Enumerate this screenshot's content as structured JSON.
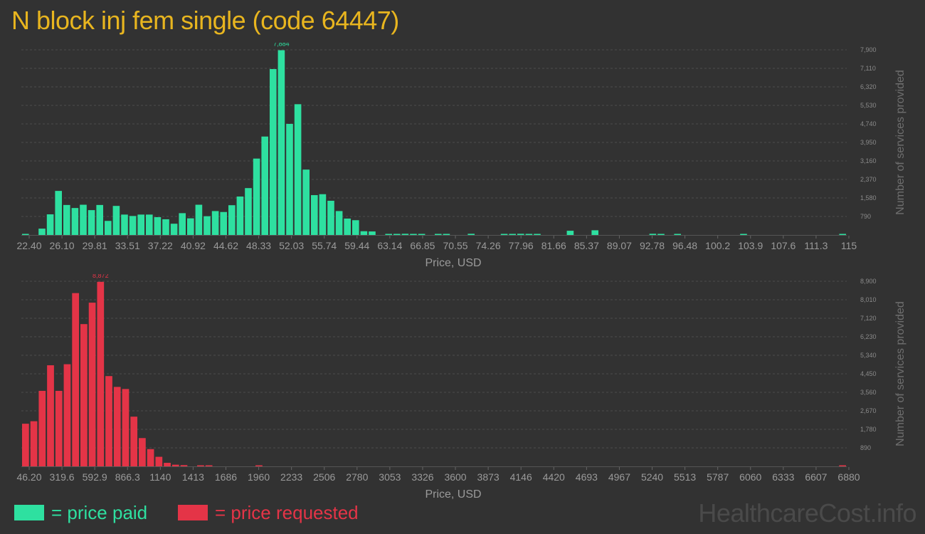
{
  "title": "N block inj fem single (code 64447)",
  "legend": {
    "paid_label": "= price paid",
    "requested_label": "= price requested",
    "paid_color": "#2ee0a0",
    "requested_color": "#e43447"
  },
  "brand": "HealthcareCost.info",
  "chart_data": [
    {
      "type": "bar",
      "name": "price paid",
      "color": "#2ee0a0",
      "xlabel": "Price, USD",
      "ylabel": "Number of services provided",
      "x_tick_labels": [
        "22.40",
        "26.10",
        "29.81",
        "33.51",
        "37.22",
        "40.92",
        "44.62",
        "48.33",
        "52.03",
        "55.74",
        "59.44",
        "63.14",
        "66.85",
        "70.55",
        "74.26",
        "77.96",
        "81.66",
        "85.37",
        "89.07",
        "92.78",
        "96.48",
        "100.2",
        "103.9",
        "107.6",
        "111.3",
        "115"
      ],
      "y_tick_labels": [
        "790",
        "1,580",
        "2,370",
        "3,160",
        "3,950",
        "4,740",
        "5,530",
        "6,320",
        "7,110",
        "7,900"
      ],
      "ylim": [
        0,
        7900
      ],
      "peak_label": "7,884",
      "values": [
        40,
        0,
        270,
        880,
        1880,
        1280,
        1150,
        1290,
        1060,
        1280,
        600,
        1240,
        870,
        810,
        870,
        870,
        760,
        670,
        480,
        930,
        710,
        1290,
        800,
        1020,
        980,
        1270,
        1640,
        2000,
        3260,
        4200,
        7080,
        7884,
        4740,
        5580,
        2790,
        1700,
        1740,
        1460,
        1020,
        700,
        630,
        160,
        150,
        0,
        30,
        30,
        50,
        30,
        30,
        0,
        20,
        30,
        0,
        0,
        50,
        0,
        0,
        0,
        40,
        40,
        50,
        30,
        30,
        0,
        0,
        0,
        180,
        0,
        0,
        200,
        0,
        0,
        0,
        0,
        0,
        0,
        50,
        30,
        0,
        30,
        0,
        0,
        0,
        0,
        0,
        0,
        0,
        30,
        0,
        0,
        0,
        0,
        0,
        0,
        0,
        0,
        0,
        0,
        0,
        30
      ]
    },
    {
      "type": "bar",
      "name": "price requested",
      "color": "#e43447",
      "xlabel": "Price, USD",
      "ylabel": "Number of services provided",
      "x_tick_labels": [
        "46.20",
        "319.6",
        "592.9",
        "866.3",
        "1140",
        "1413",
        "1686",
        "1960",
        "2233",
        "2506",
        "2780",
        "3053",
        "3326",
        "3600",
        "3873",
        "4146",
        "4420",
        "4693",
        "4967",
        "5240",
        "5513",
        "5787",
        "6060",
        "6333",
        "6607",
        "6880"
      ],
      "y_tick_labels": [
        "890",
        "1,780",
        "2,670",
        "3,560",
        "4,450",
        "5,340",
        "6,230",
        "7,120",
        "8,010",
        "8,900"
      ],
      "ylim": [
        0,
        8900
      ],
      "peak_label": "8,872",
      "values": [
        2050,
        2170,
        3630,
        4860,
        3630,
        4910,
        8330,
        6840,
        7870,
        8872,
        4340,
        3820,
        3720,
        2390,
        1360,
        830,
        460,
        170,
        80,
        60,
        0,
        30,
        30,
        0,
        0,
        0,
        0,
        0,
        30,
        0,
        0,
        0,
        0,
        0,
        0,
        0,
        0,
        0,
        0,
        0,
        0,
        0,
        0,
        0,
        0,
        0,
        0,
        0,
        0,
        0,
        0,
        0,
        0,
        0,
        0,
        0,
        0,
        0,
        0,
        0,
        0,
        0,
        0,
        0,
        0,
        0,
        0,
        0,
        0,
        0,
        0,
        0,
        0,
        0,
        0,
        0,
        0,
        0,
        0,
        0,
        0,
        0,
        0,
        0,
        0,
        0,
        0,
        0,
        0,
        0,
        0,
        0,
        0,
        0,
        0,
        0,
        0,
        0,
        40
      ]
    }
  ]
}
